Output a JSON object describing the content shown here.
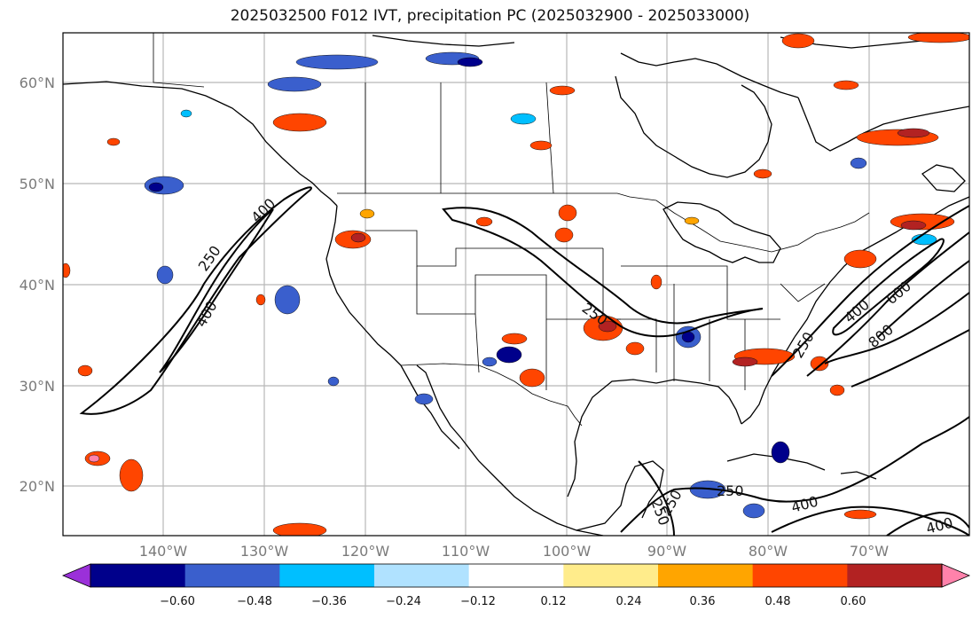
{
  "title": "2025032500 F012 IVT, precipitation PC (2025032900 - 2025033000)",
  "lat_labels": [
    "60°N",
    "50°N",
    "40°N",
    "30°N",
    "20°N"
  ],
  "lon_labels": [
    "140°W",
    "130°W",
    "120°W",
    "110°W",
    "100°W",
    "90°W",
    "80°W",
    "70°W"
  ],
  "ivt_contour_labels": [
    "250",
    "400",
    "250",
    "400",
    "250",
    "250",
    "400",
    "600",
    "800",
    "250",
    "250",
    "400",
    "400"
  ],
  "colorbar": {
    "ticks": [
      "−0.60",
      "−0.48",
      "−0.36",
      "−0.24",
      "−0.12",
      "0.12",
      "0.24",
      "0.36",
      "0.48",
      "0.60"
    ],
    "colors": [
      "#9b30d9",
      "#00008b",
      "#3a5fcd",
      "#00bfff",
      "#b0e2ff",
      "#ffffff",
      "#ffec8b",
      "#ffa500",
      "#ff4500",
      "#b22222",
      "#ff82ab"
    ]
  }
}
